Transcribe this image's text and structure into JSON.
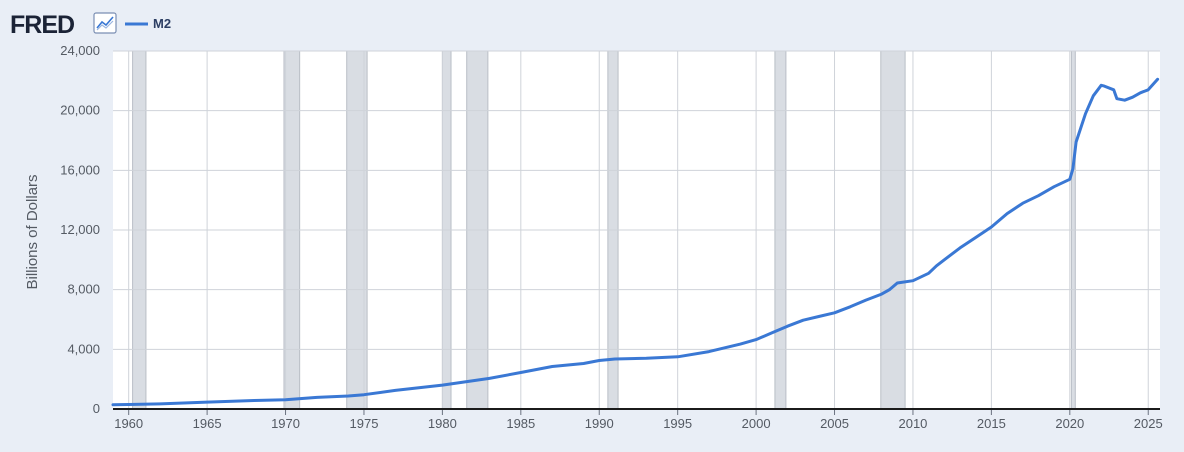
{
  "header": {
    "logo_text": "FRED",
    "logo_icon": "line-chart-icon",
    "legend_label": "M2"
  },
  "colors": {
    "series": "#3a78d4",
    "recession": "#d9dde3",
    "grid": "#cfd3d9",
    "background": "#e9eef6",
    "plot": "#ffffff"
  },
  "chart_data": {
    "type": "line",
    "title": "",
    "xlabel": "",
    "ylabel": "Billions of Dollars",
    "xlim": [
      1959.0,
      2025.75
    ],
    "ylim": [
      0,
      24000
    ],
    "x_ticks": [
      1960,
      1965,
      1970,
      1975,
      1980,
      1985,
      1990,
      1995,
      2000,
      2005,
      2010,
      2015,
      2020,
      2025
    ],
    "x_tick_labels": [
      "1960",
      "1965",
      "1970",
      "1975",
      "1980",
      "1985",
      "1990",
      "1995",
      "2000",
      "2005",
      "2010",
      "2015",
      "2020",
      "2025"
    ],
    "y_ticks": [
      0,
      4000,
      8000,
      12000,
      16000,
      20000,
      24000
    ],
    "y_tick_labels": [
      "0",
      "4,000",
      "8,000",
      "12,000",
      "16,000",
      "20,000",
      "24,000"
    ],
    "grid": true,
    "legend_position": "top-left",
    "recessions": [
      [
        1960.25,
        1961.1
      ],
      [
        1969.9,
        1970.9
      ],
      [
        1973.9,
        1975.2
      ],
      [
        1980.0,
        1980.55
      ],
      [
        1981.55,
        1982.9
      ],
      [
        1990.55,
        1991.2
      ],
      [
        2001.2,
        2001.9
      ],
      [
        2007.95,
        2009.5
      ],
      [
        2020.1,
        2020.35
      ]
    ],
    "series": [
      {
        "name": "M2",
        "x": [
          1959.0,
          1960.0,
          1962.0,
          1965.0,
          1968.0,
          1970.0,
          1972.0,
          1974.0,
          1975.0,
          1977.0,
          1980.0,
          1983.0,
          1985.0,
          1987.0,
          1989.0,
          1990.0,
          1991.0,
          1993.0,
          1995.0,
          1997.0,
          1999.0,
          2000.0,
          2001.0,
          2002.0,
          2003.0,
          2004.0,
          2005.0,
          2006.0,
          2007.0,
          2008.0,
          2008.5,
          2009.0,
          2010.0,
          2011.0,
          2011.5,
          2012.0,
          2013.0,
          2014.0,
          2015.0,
          2016.0,
          2017.0,
          2018.0,
          2019.0,
          2020.0,
          2020.2,
          2020.4,
          2021.0,
          2021.5,
          2022.0,
          2022.2,
          2022.8,
          2023.0,
          2023.5,
          2024.0,
          2024.5,
          2025.0,
          2025.6
        ],
        "y": [
          290,
          300,
          340,
          460,
          570,
          620,
          780,
          870,
          960,
          1250,
          1600,
          2050,
          2450,
          2850,
          3050,
          3250,
          3350,
          3400,
          3500,
          3850,
          4350,
          4650,
          5100,
          5550,
          5950,
          6200,
          6450,
          6850,
          7300,
          7700,
          8000,
          8450,
          8600,
          9100,
          9600,
          10000,
          10800,
          11500,
          12200,
          13100,
          13800,
          14300,
          14900,
          15400,
          16100,
          17900,
          19800,
          21000,
          21700,
          21650,
          21400,
          20800,
          20700,
          20900,
          21200,
          21400,
          22100
        ]
      }
    ]
  }
}
